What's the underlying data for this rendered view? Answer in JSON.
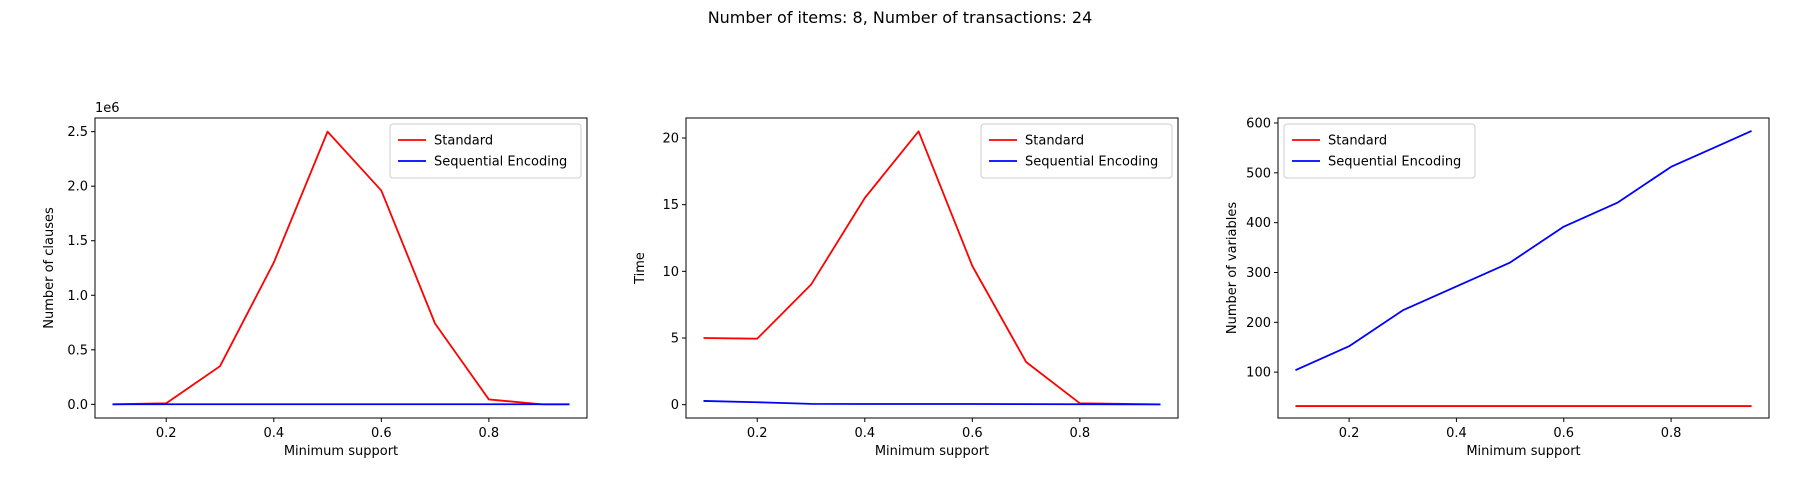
{
  "figure": {
    "suptitle": "Number of items: 8, Number of transactions: 24",
    "colors": {
      "standard": "#ff0000",
      "sequential": "#0000ff"
    }
  },
  "chart_data": [
    {
      "type": "line",
      "title": "",
      "xlabel": "Minimum support",
      "ylabel": "Number of clauses",
      "offset_label": "1e6",
      "xlim": [
        0.0675,
        0.9825
      ],
      "ylim": [
        -125000,
        2625000
      ],
      "xticks": [
        0.2,
        0.4,
        0.6,
        0.8
      ],
      "xtick_labels": [
        "0.2",
        "0.4",
        "0.6",
        "0.8"
      ],
      "yticks": [
        0,
        500000,
        1000000,
        1500000,
        2000000,
        2500000
      ],
      "ytick_labels": [
        "0.0",
        "0.5",
        "1.0",
        "1.5",
        "2.0",
        "2.5"
      ],
      "grid": false,
      "legend": "upper right",
      "x": [
        0.1,
        0.2,
        0.3,
        0.4,
        0.5,
        0.6,
        0.7,
        0.8,
        0.9,
        0.95
      ],
      "series": [
        {
          "name": "Standard",
          "color": "#ff0000",
          "values": [
            0,
            10000,
            350000,
            1300000,
            2500000,
            1960000,
            740000,
            45000,
            0,
            0
          ]
        },
        {
          "name": "Sequential Encoding",
          "color": "#0000ff",
          "values": [
            1000,
            1000,
            1000,
            1000,
            1000,
            1000,
            1000,
            1000,
            1000,
            1000
          ]
        }
      ]
    },
    {
      "type": "line",
      "title": "",
      "xlabel": "Minimum support",
      "ylabel": "Time",
      "offset_label": "",
      "xlim": [
        0.0675,
        0.9825
      ],
      "ylim": [
        -1.0,
        21.5
      ],
      "xticks": [
        0.2,
        0.4,
        0.6,
        0.8
      ],
      "xtick_labels": [
        "0.2",
        "0.4",
        "0.6",
        "0.8"
      ],
      "yticks": [
        0,
        5,
        10,
        15,
        20
      ],
      "ytick_labels": [
        "0",
        "5",
        "10",
        "15",
        "20"
      ],
      "grid": false,
      "legend": "upper right",
      "x": [
        0.1,
        0.2,
        0.3,
        0.4,
        0.5,
        0.6,
        0.7,
        0.8,
        0.9,
        0.95
      ],
      "series": [
        {
          "name": "Standard",
          "color": "#ff0000",
          "values": [
            5.0,
            4.95,
            9.0,
            15.5,
            20.5,
            10.4,
            3.2,
            0.1,
            0.05,
            0.02
          ]
        },
        {
          "name": "Sequential Encoding",
          "color": "#0000ff",
          "values": [
            0.28,
            0.18,
            0.06,
            0.05,
            0.05,
            0.05,
            0.04,
            0.03,
            0.02,
            0.02
          ]
        }
      ]
    },
    {
      "type": "line",
      "title": "",
      "xlabel": "Minimum support",
      "ylabel": "Number of variables",
      "offset_label": "",
      "xlim": [
        0.0675,
        0.9825
      ],
      "ylim": [
        8,
        610
      ],
      "xticks": [
        0.2,
        0.4,
        0.6,
        0.8
      ],
      "xtick_labels": [
        "0.2",
        "0.4",
        "0.6",
        "0.8"
      ],
      "yticks": [
        100,
        200,
        300,
        400,
        500,
        600
      ],
      "ytick_labels": [
        "100",
        "200",
        "300",
        "400",
        "500",
        "600"
      ],
      "grid": false,
      "legend": "upper left",
      "x": [
        0.1,
        0.2,
        0.3,
        0.4,
        0.5,
        0.6,
        0.7,
        0.8,
        0.9,
        0.95
      ],
      "series": [
        {
          "name": "Standard",
          "color": "#ff0000",
          "values": [
            32,
            32,
            32,
            32,
            32,
            32,
            32,
            32,
            32,
            32
          ]
        },
        {
          "name": "Sequential Encoding",
          "color": "#0000ff",
          "values": [
            104,
            152,
            224,
            272,
            320,
            392,
            440,
            512,
            560,
            584
          ]
        }
      ]
    }
  ]
}
